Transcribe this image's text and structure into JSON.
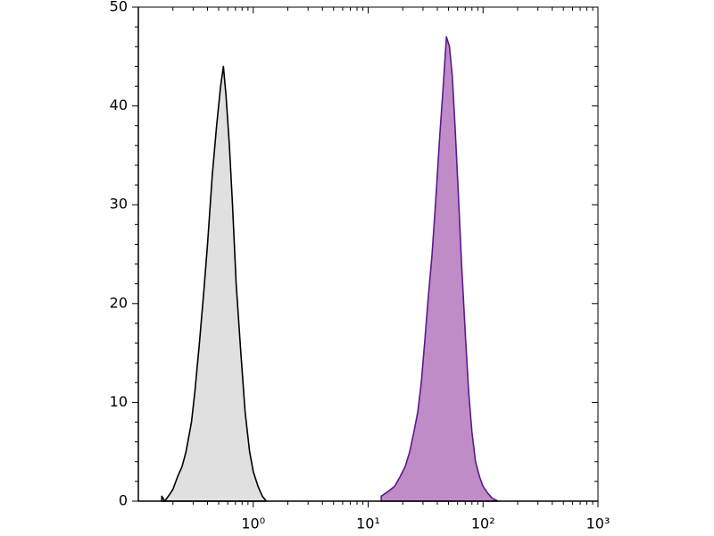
{
  "chart_data": {
    "type": "histogram-overlay",
    "xscale": "log",
    "xlim": [
      0.1,
      1000
    ],
    "xticks": [
      {
        "value": 1,
        "label": "10⁰"
      },
      {
        "value": 10,
        "label": "10¹"
      },
      {
        "value": 100,
        "label": "10²"
      },
      {
        "value": 1000,
        "label": "10³"
      }
    ],
    "xminorticks": [
      0.2,
      0.3,
      0.4,
      0.5,
      0.6,
      0.7,
      0.8,
      0.9,
      2,
      3,
      4,
      5,
      6,
      7,
      8,
      9,
      20,
      30,
      40,
      50,
      60,
      70,
      80,
      90,
      200,
      300,
      400,
      500,
      600,
      700,
      800,
      900
    ],
    "ylim": [
      0,
      50
    ],
    "yticks": [
      0,
      10,
      20,
      30,
      40,
      50
    ],
    "yminorticks": [
      2,
      4,
      6,
      8,
      12,
      14,
      16,
      18,
      22,
      24,
      26,
      28,
      32,
      34,
      36,
      38,
      42,
      44,
      46,
      48
    ],
    "series": [
      {
        "color": "#e0e0e0",
        "line_color": "#000000",
        "x": [
          0.16,
          0.17,
          0.19,
          0.2,
          0.22,
          0.24,
          0.26,
          0.29,
          0.31,
          0.34,
          0.37,
          0.4,
          0.44,
          0.48,
          0.52,
          0.55,
          0.58,
          0.62,
          0.66,
          0.71,
          0.78,
          0.85,
          0.93,
          1.0,
          1.1,
          1.2,
          1.3
        ],
        "values": [
          0.5,
          0,
          0.8,
          1.2,
          2.5,
          3.5,
          5,
          8,
          11,
          16,
          21,
          26,
          33,
          38,
          42,
          44,
          41,
          36,
          30,
          22,
          15,
          9,
          5,
          3,
          1.5,
          0.5,
          0
        ]
      },
      {
        "color": "#c08cc8",
        "line_color": "#5a1a8a",
        "x": [
          13,
          15,
          17,
          19,
          21,
          23,
          25,
          27,
          29,
          31,
          33,
          36,
          39,
          42,
          45,
          48,
          51,
          54,
          57,
          61,
          65,
          70,
          75,
          80,
          86,
          93,
          100,
          110,
          120,
          135
        ],
        "values": [
          0.5,
          1,
          1.5,
          2.5,
          3.5,
          5,
          7,
          9,
          12,
          16,
          20,
          25,
          31,
          37,
          42,
          47,
          46,
          43,
          38,
          31,
          24,
          17,
          11,
          7,
          4,
          2.5,
          1.5,
          0.8,
          0.3,
          0
        ]
      }
    ]
  }
}
